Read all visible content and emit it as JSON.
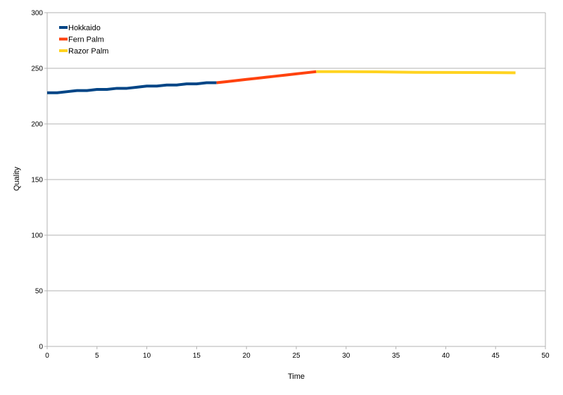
{
  "chart_data": {
    "type": "line",
    "title": "",
    "xlabel": "Time",
    "ylabel": "Quality",
    "xlim": [
      0,
      50
    ],
    "ylim": [
      0,
      300
    ],
    "x_ticks": [
      0,
      5,
      10,
      15,
      20,
      25,
      30,
      35,
      40,
      45,
      50
    ],
    "y_ticks": [
      0,
      50,
      100,
      150,
      200,
      250,
      300
    ],
    "grid": "horizontal",
    "legend_position": "top-left",
    "series": [
      {
        "name": "Hokkaido",
        "color": "#004586",
        "x": [
          0,
          1,
          2,
          3,
          4,
          5,
          6,
          7,
          8,
          9,
          10,
          11,
          12,
          13,
          14,
          15,
          16,
          17
        ],
        "y": [
          228,
          228,
          229,
          230,
          230,
          231,
          231,
          232,
          232,
          233,
          234,
          234,
          235,
          235,
          236,
          236,
          237,
          237
        ]
      },
      {
        "name": "Fern Palm",
        "color": "#ff420e",
        "x": [
          17,
          18,
          19,
          20,
          21,
          22,
          23,
          24,
          25,
          26,
          27
        ],
        "y": [
          237,
          238,
          239,
          240,
          241,
          242,
          243,
          244,
          245,
          246,
          247
        ]
      },
      {
        "name": "Razor Palm",
        "color": "#ffd320",
        "x": [
          27,
          30,
          33,
          35,
          37,
          40,
          43,
          45,
          47
        ],
        "y": [
          247,
          247,
          246.8,
          246.6,
          246.4,
          246.3,
          246.2,
          246.1,
          246
        ]
      }
    ]
  }
}
